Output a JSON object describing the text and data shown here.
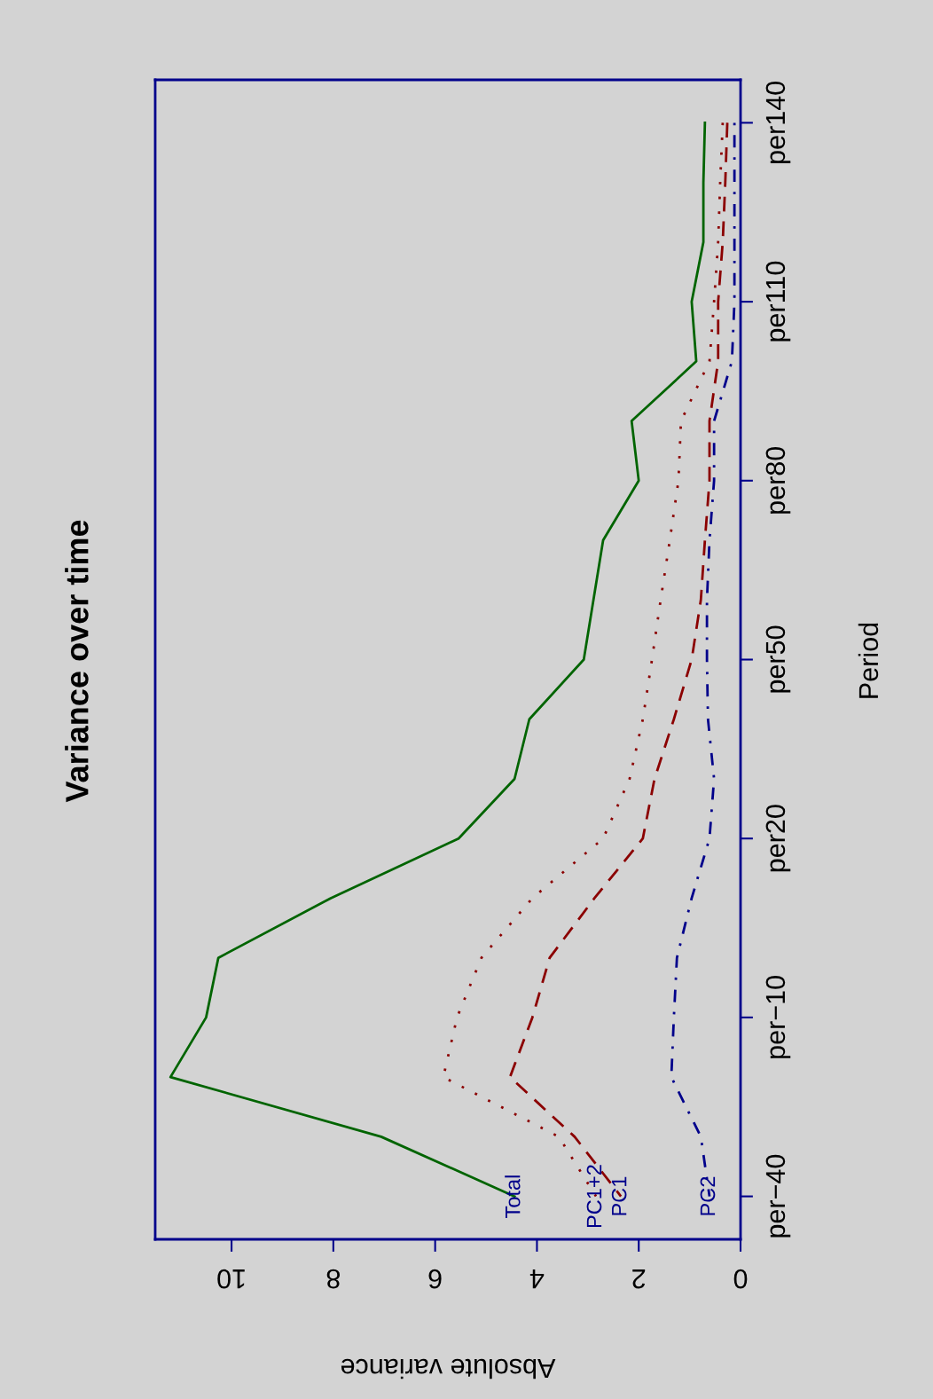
{
  "chart_data": {
    "type": "line",
    "orientation": "horizontal",
    "title": "Variance over time",
    "xlabel": "Absolute variance",
    "ylabel": "Period",
    "xlim": [
      11.5,
      0
    ],
    "xticks": [
      0,
      2,
      4,
      6,
      8,
      10
    ],
    "categories": [
      "per140",
      null,
      null,
      "per110",
      null,
      null,
      "per80",
      null,
      null,
      "per50",
      null,
      null,
      "per20",
      null,
      null,
      "per−10",
      null,
      null,
      "per−40"
    ],
    "grid": false,
    "series": [
      {
        "name": "Total",
        "color": "#006400",
        "line_style": "solid",
        "values": [
          0.7,
          0.73,
          0.73,
          0.96,
          0.87,
          2.14,
          2.0,
          2.7,
          2.89,
          3.08,
          4.15,
          4.44,
          5.54,
          8.05,
          10.26,
          10.5,
          11.2,
          7.06,
          4.44
        ]
      },
      {
        "name": "PC1+2",
        "color": "#8b0000",
        "line_style": "dotted",
        "values": [
          0.35,
          0.4,
          0.44,
          0.52,
          0.61,
          1.17,
          1.22,
          1.39,
          1.57,
          1.74,
          1.92,
          2.18,
          2.7,
          4.09,
          5.09,
          5.57,
          5.84,
          3.57,
          2.84
        ]
      },
      {
        "name": "PC1",
        "color": "#8b0000",
        "line_style": "dashed",
        "values": [
          0.26,
          0.3,
          0.35,
          0.44,
          0.44,
          0.61,
          0.61,
          0.7,
          0.78,
          0.96,
          1.31,
          1.69,
          1.92,
          2.87,
          3.75,
          4.09,
          4.53,
          3.26,
          2.35
        ]
      },
      {
        "name": "PC2",
        "color": "#00008b",
        "line_style": "dashdot",
        "values": [
          0.12,
          0.12,
          0.12,
          0.12,
          0.17,
          0.52,
          0.52,
          0.61,
          0.66,
          0.66,
          0.64,
          0.52,
          0.61,
          0.96,
          1.25,
          1.31,
          1.36,
          0.78,
          0.61
        ]
      }
    ]
  }
}
